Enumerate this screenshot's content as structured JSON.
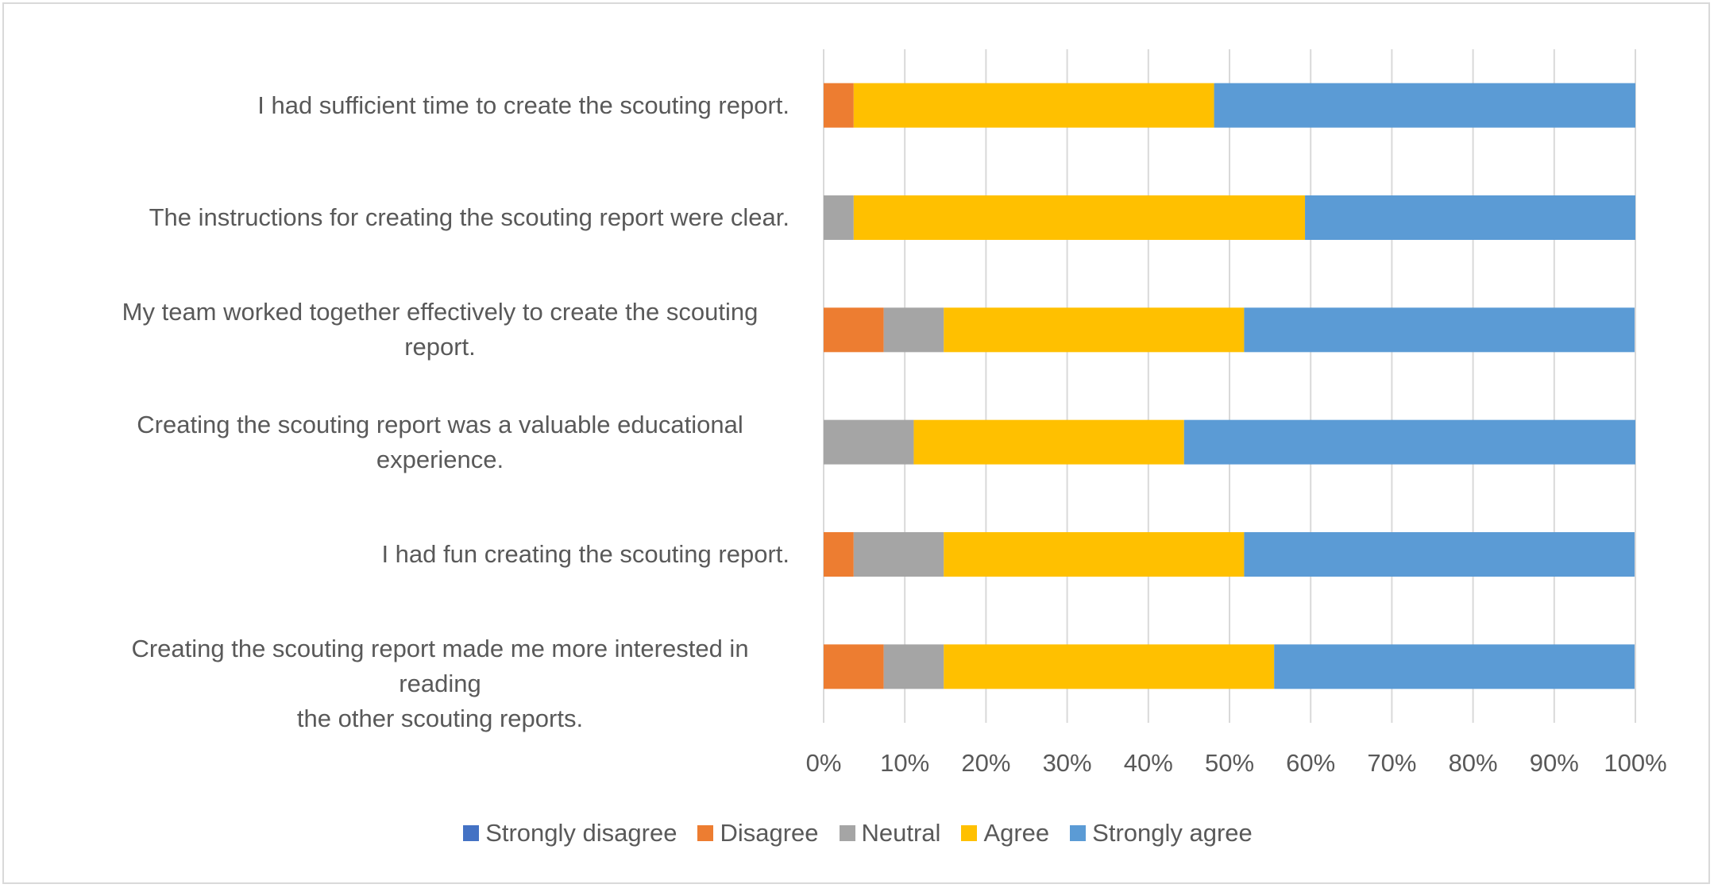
{
  "chart_data": {
    "type": "bar",
    "orientation": "horizontal",
    "stacked": "percent",
    "title": "",
    "xlabel": "",
    "ylabel": "",
    "xlim": [
      0,
      100
    ],
    "x_ticks": [
      "0%",
      "10%",
      "20%",
      "30%",
      "40%",
      "50%",
      "60%",
      "70%",
      "80%",
      "90%",
      "100%"
    ],
    "grid": "vertical",
    "legend_position": "bottom",
    "categories": [
      "I had sufficient time to create the scouting report.",
      "The instructions for creating the scouting report were clear.",
      "My team worked together effectively to create the scouting report.",
      "Creating the scouting report was a valuable educational experience.",
      "I had fun creating the scouting report.",
      "Creating the scouting report made me more interested in reading the other scouting reports."
    ],
    "category_lines": [
      [
        "I had sufficient time to create the scouting report."
      ],
      [
        "The instructions for creating the scouting report were clear."
      ],
      [
        "My team worked together effectively to create the scouting",
        "report."
      ],
      [
        "Creating the scouting report was a valuable educational",
        "experience."
      ],
      [
        "I had fun creating the scouting report."
      ],
      [
        "Creating the scouting report made me more interested in reading",
        "the other scouting reports."
      ]
    ],
    "series": [
      {
        "name": "Strongly disagree",
        "color": "#4472c4",
        "values": [
          0,
          0,
          0,
          0,
          0,
          0
        ]
      },
      {
        "name": "Disagree",
        "color": "#ed7d31",
        "values": [
          3.7,
          0,
          7.4,
          0,
          3.7,
          7.4
        ]
      },
      {
        "name": "Neutral",
        "color": "#a5a5a5",
        "values": [
          0,
          3.7,
          7.4,
          11.1,
          11.1,
          7.4
        ]
      },
      {
        "name": "Agree",
        "color": "#ffc000",
        "values": [
          44.4,
          55.6,
          37.0,
          33.3,
          37.0,
          40.7
        ]
      },
      {
        "name": "Strongly agree",
        "color": "#5b9bd5",
        "values": [
          51.9,
          40.7,
          48.1,
          55.6,
          48.1,
          44.4
        ]
      }
    ]
  }
}
